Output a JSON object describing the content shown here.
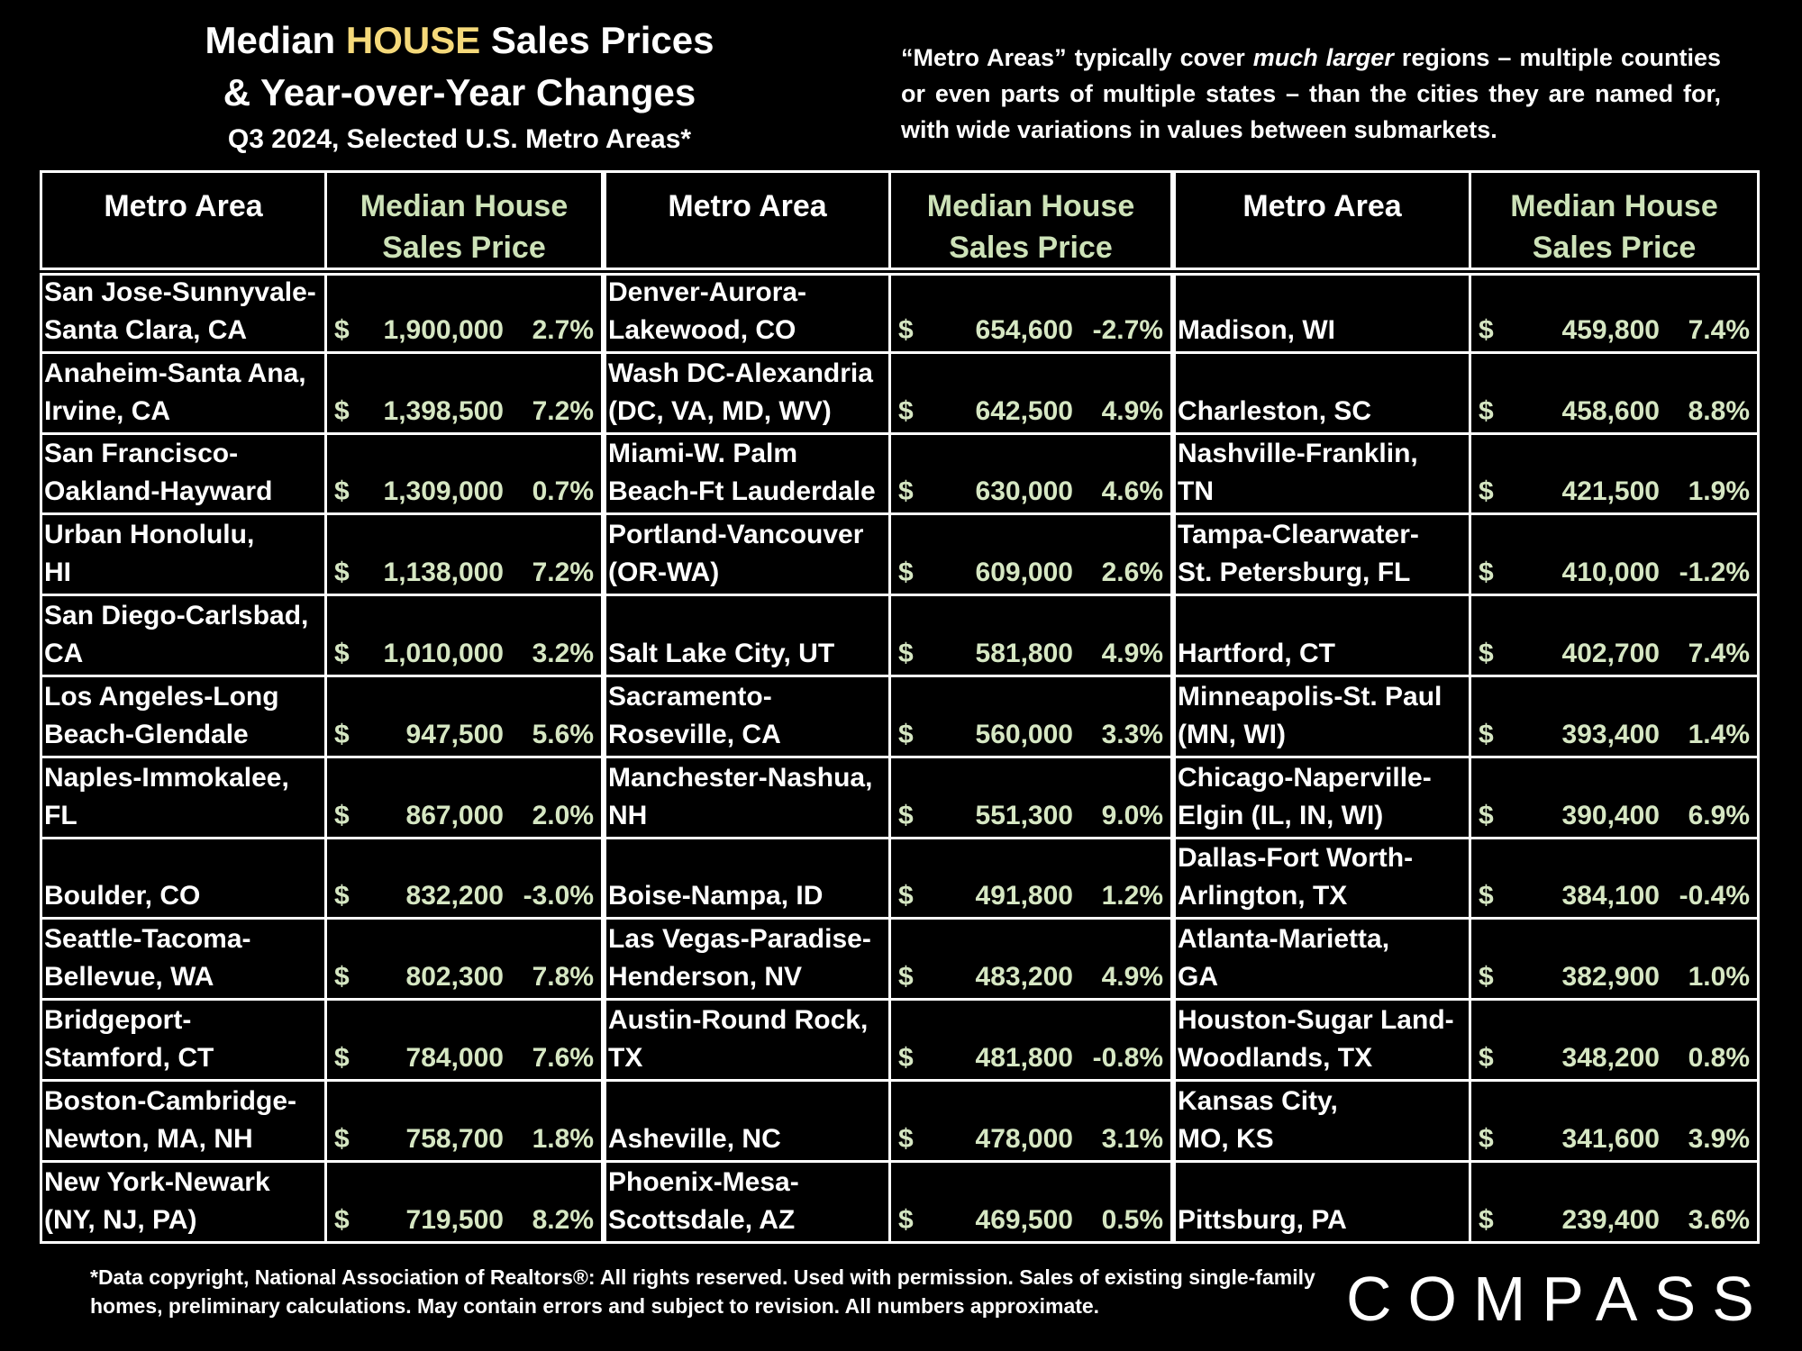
{
  "title": {
    "line1_pre": "Median ",
    "line1_highlight": "HOUSE",
    "line1_post": " Sales Prices",
    "line2": "& Year-over-Year Changes",
    "line3": "Q3 2024, Selected U.S. Metro Areas*"
  },
  "note": {
    "part1": "“Metro Areas” typically cover ",
    "emphasis": "much larger",
    "part2": " regions – multiple counties or even parts of multiple states – than the cities they are named for, with wide variations in values between submarkets."
  },
  "headers": {
    "area": "Metro Area",
    "price": "Median House Sales Price"
  },
  "colors": {
    "background": "#000000",
    "highlight": "#f5d97a",
    "price_text": "#d6e7c3",
    "price_header": "#cde2b8"
  },
  "columns": [
    {
      "rows": [
        {
          "area": "San Jose-Sunnyvale-\nSanta Clara, CA",
          "price": "1,900,000",
          "change": "2.7%"
        },
        {
          "area": "Anaheim-Santa Ana,\nIrvine, CA",
          "price": "1,398,500",
          "change": "7.2%"
        },
        {
          "area": "San Francisco-\nOakland-Hayward",
          "price": "1,309,000",
          "change": "0.7%"
        },
        {
          "area": "Urban Honolulu,\nHI",
          "price": "1,138,000",
          "change": "7.2%"
        },
        {
          "area": "San Diego-Carlsbad,\nCA",
          "price": "1,010,000",
          "change": "3.2%"
        },
        {
          "area": "Los Angeles-Long\nBeach-Glendale",
          "price": "947,500",
          "change": "5.6%"
        },
        {
          "area": "Naples-Immokalee,\nFL",
          "price": "867,000",
          "change": "2.0%"
        },
        {
          "area": "Boulder, CO",
          "price": "832,200",
          "change": "-3.0%"
        },
        {
          "area": "Seattle-Tacoma-\nBellevue, WA",
          "price": "802,300",
          "change": "7.8%"
        },
        {
          "area": "Bridgeport-\nStamford, CT",
          "price": "784,000",
          "change": "7.6%"
        },
        {
          "area": "Boston-Cambridge-\nNewton, MA, NH",
          "price": "758,700",
          "change": "1.8%"
        },
        {
          "area": "New York-Newark\n(NY, NJ, PA)",
          "price": "719,500",
          "change": "8.2%"
        }
      ]
    },
    {
      "rows": [
        {
          "area": "Denver-Aurora-\nLakewood, CO",
          "price": "654,600",
          "change": "-2.7%"
        },
        {
          "area": "Wash DC-Alexandria\n (DC, VA, MD, WV)",
          "price": "642,500",
          "change": "4.9%"
        },
        {
          "area": "Miami-W. Palm\nBeach-Ft Lauderdale",
          "price": "630,000",
          "change": "4.6%"
        },
        {
          "area": "Portland-Vancouver\n(OR-WA)",
          "price": "609,000",
          "change": "2.6%"
        },
        {
          "area": "Salt Lake City, UT",
          "price": "581,800",
          "change": "4.9%"
        },
        {
          "area": "Sacramento-\nRoseville, CA",
          "price": "560,000",
          "change": "3.3%"
        },
        {
          "area": "Manchester-Nashua,\nNH",
          "price": "551,300",
          "change": "9.0%"
        },
        {
          "area": "Boise-Nampa, ID",
          "price": "491,800",
          "change": "1.2%"
        },
        {
          "area": "Las Vegas-Paradise-\nHenderson, NV",
          "price": "483,200",
          "change": "4.9%"
        },
        {
          "area": "Austin-Round Rock,\nTX",
          "price": "481,800",
          "change": "-0.8%"
        },
        {
          "area": "Asheville, NC",
          "price": "478,000",
          "change": "3.1%"
        },
        {
          "area": "Phoenix-Mesa-\nScottsdale, AZ",
          "price": "469,500",
          "change": "0.5%"
        }
      ]
    },
    {
      "rows": [
        {
          "area": "Madison, WI",
          "price": "459,800",
          "change": "7.4%"
        },
        {
          "area": "Charleston, SC",
          "price": "458,600",
          "change": "8.8%"
        },
        {
          "area": "Nashville-Franklin,\nTN",
          "price": "421,500",
          "change": "1.9%"
        },
        {
          "area": "Tampa-Clearwater-\nSt. Petersburg, FL",
          "price": "410,000",
          "change": "-1.2%"
        },
        {
          "area": "Hartford, CT",
          "price": "402,700",
          "change": "7.4%"
        },
        {
          "area": "Minneapolis-St. Paul\n(MN, WI)",
          "price": "393,400",
          "change": "1.4%"
        },
        {
          "area": "Chicago-Naperville-\nElgin (IL, IN, WI)",
          "price": "390,400",
          "change": "6.9%"
        },
        {
          "area": "Dallas-Fort Worth-\nArlington, TX",
          "price": "384,100",
          "change": "-0.4%"
        },
        {
          "area": "Atlanta-Marietta,\nGA",
          "price": "382,900",
          "change": "1.0%"
        },
        {
          "area": "Houston-Sugar Land-\nWoodlands, TX",
          "price": "348,200",
          "change": "0.8%"
        },
        {
          "area": "Kansas City,\nMO, KS",
          "price": "341,600",
          "change": "3.9%"
        },
        {
          "area": "Pittsburg, PA",
          "price": "239,400",
          "change": "3.6%"
        }
      ]
    }
  ],
  "currency_symbol": "$",
  "footer": "*Data copyright, National Association of Realtors®: All rights reserved. Used with permission. Sales of existing single-family homes, preliminary calculations. May contain errors and subject to revision. All numbers approximate.",
  "logo": "COMPASS"
}
